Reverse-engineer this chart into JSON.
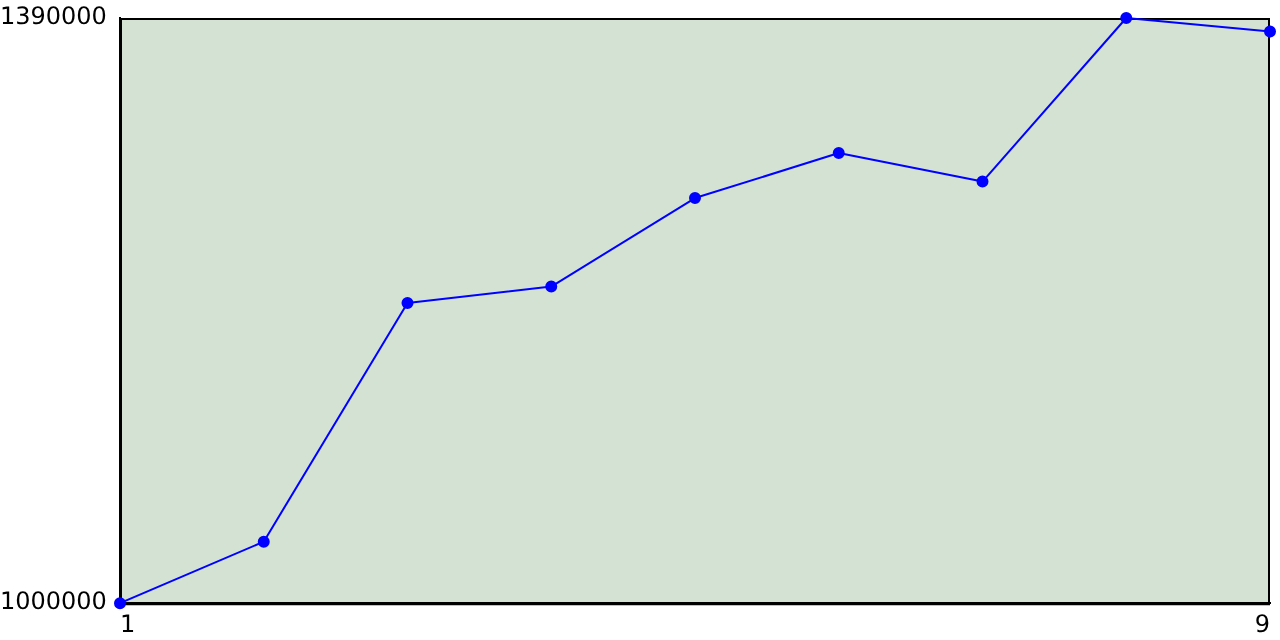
{
  "chart_data": {
    "type": "line",
    "x": [
      1,
      2,
      3,
      4,
      5,
      6,
      7,
      8,
      9
    ],
    "series": [
      {
        "color": "#0000ff",
        "values": [
          1000000,
          1041000,
          1200000,
          1211000,
          1270000,
          1300000,
          1281000,
          1390000,
          1381000
        ]
      }
    ],
    "xlim": [
      1,
      9
    ],
    "xticks": [
      1,
      9
    ],
    "ylim": [
      1000000,
      1390000
    ],
    "yticks": [
      1000000,
      1390000
    ],
    "grid": false,
    "legend": false,
    "marker": "circle",
    "line_style": "solid"
  }
}
